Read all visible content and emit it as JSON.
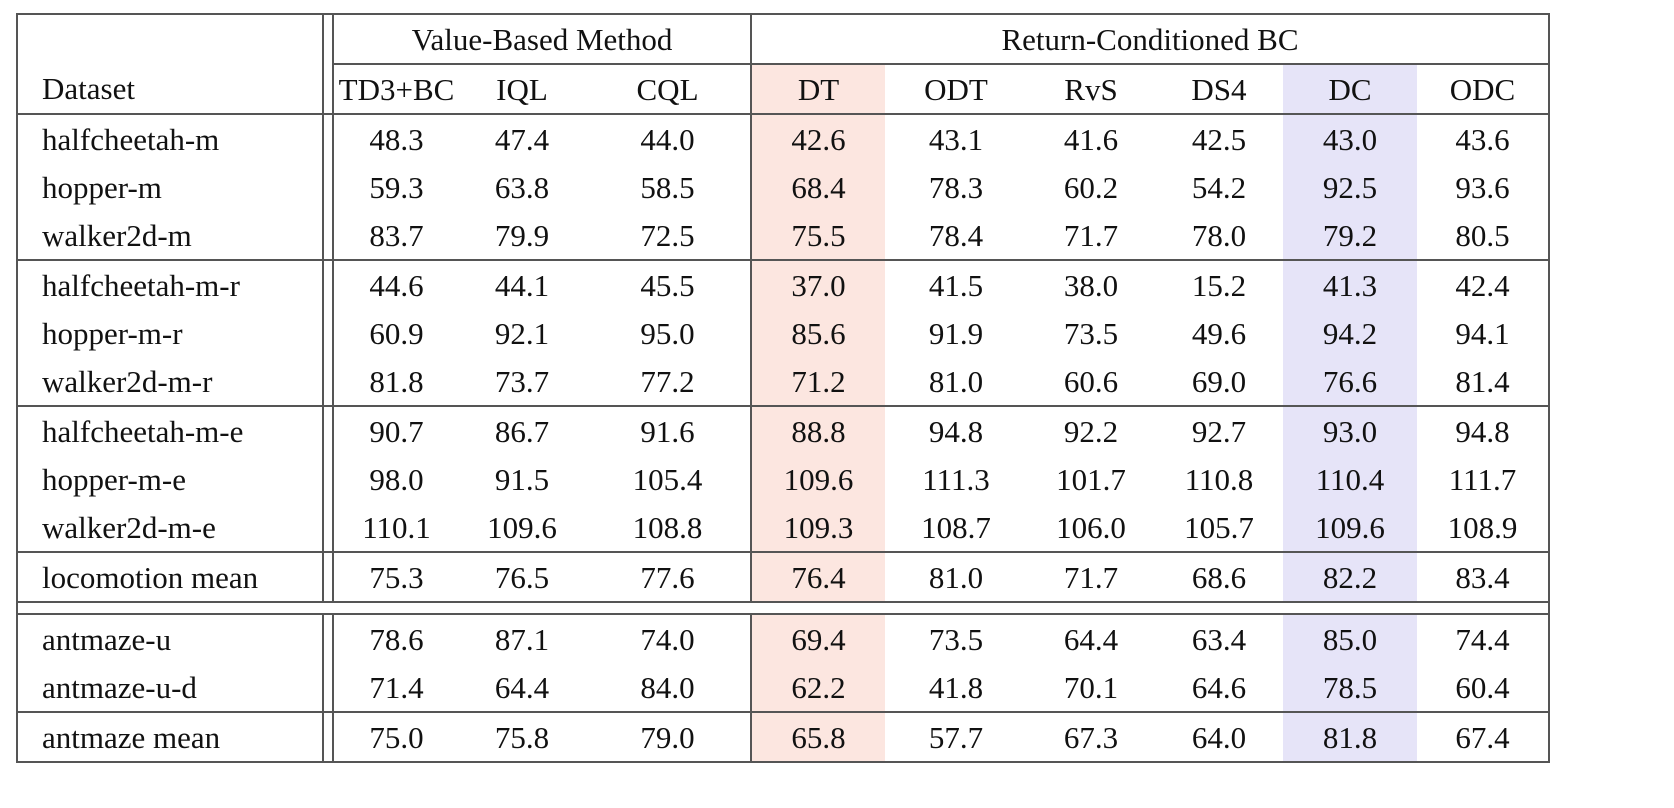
{
  "table": {
    "groups": [
      {
        "label": "Value-Based Method"
      },
      {
        "label": "Return-Conditioned BC"
      }
    ],
    "columns": [
      "Dataset",
      "TD3+BC",
      "IQL",
      "CQL",
      "DT",
      "ODT",
      "RvS",
      "DS4",
      "DC",
      "ODC"
    ],
    "bold_columns": [
      8,
      9
    ],
    "highlight_colors": {
      "DT": "#fce6e0",
      "DC": "#e6e4f8"
    },
    "blocks": [
      {
        "rows": [
          {
            "name": "halfcheetah-m",
            "values": [
              "48.3",
              "47.4",
              "44.0",
              "42.6",
              "43.1",
              "41.6",
              "42.5",
              "43.0",
              "43.6"
            ],
            "bold": [
              0,
              1
            ]
          },
          {
            "name": "hopper-m",
            "values": [
              "59.3",
              "63.8",
              "58.5",
              "68.4",
              "78.3",
              "60.2",
              "54.2",
              "92.5",
              "93.6"
            ],
            "bold": [
              7,
              8
            ]
          },
          {
            "name": "walker2d-m",
            "values": [
              "83.7",
              "79.9",
              "72.5",
              "75.5",
              "78.4",
              "71.7",
              "78.0",
              "79.2",
              "80.5"
            ],
            "bold": [
              0
            ]
          }
        ]
      },
      {
        "rows": [
          {
            "name": "halfcheetah-m-r",
            "values": [
              "44.6",
              "44.1",
              "45.5",
              "37.0",
              "41.5",
              "38.0",
              "15.2",
              "41.3",
              "42.4"
            ],
            "bold": [
              0,
              2
            ]
          },
          {
            "name": "hopper-m-r",
            "values": [
              "60.9",
              "92.1",
              "95.0",
              "85.6",
              "91.9",
              "73.5",
              "49.6",
              "94.2",
              "94.1"
            ],
            "bold": [
              2,
              7,
              8
            ]
          },
          {
            "name": "walker2d-m-r",
            "values": [
              "81.8",
              "73.7",
              "77.2",
              "71.2",
              "81.0",
              "60.6",
              "69.0",
              "76.6",
              "81.4"
            ],
            "bold": [
              0,
              4,
              8
            ]
          }
        ]
      },
      {
        "rows": [
          {
            "name": "halfcheetah-m-e",
            "values": [
              "90.7",
              "86.7",
              "91.6",
              "88.8",
              "94.8",
              "92.2",
              "92.7",
              "93.0",
              "94.8"
            ],
            "bold": [
              4,
              5,
              6,
              7,
              8
            ]
          },
          {
            "name": "hopper-m-e",
            "values": [
              "98.0",
              "91.5",
              "105.4",
              "109.6",
              "111.3",
              "101.7",
              "110.8",
              "110.4",
              "111.7"
            ],
            "bold": [
              3,
              4,
              6,
              7,
              8
            ]
          },
          {
            "name": "walker2d-m-e",
            "values": [
              "110.1",
              "109.6",
              "108.8",
              "109.3",
              "108.7",
              "106.0",
              "105.7",
              "109.6",
              "108.9"
            ],
            "bold": [
              0,
              1,
              2,
              3,
              4,
              7,
              8
            ]
          }
        ]
      },
      {
        "rows": [
          {
            "name": "locomotion mean",
            "values": [
              "75.3",
              "76.5",
              "77.6",
              "76.4",
              "81.0",
              "71.7",
              "68.6",
              "82.2",
              "83.4"
            ],
            "bold": [
              4,
              7,
              8
            ]
          }
        ]
      },
      {
        "gap_before": true,
        "rows": [
          {
            "name": "antmaze-u",
            "values": [
              "78.6",
              "87.1",
              "74.0",
              "69.4",
              "73.5",
              "64.4",
              "63.4",
              "85.0",
              "74.4"
            ],
            "bold": [
              1,
              7
            ]
          },
          {
            "name": "antmaze-u-d",
            "values": [
              "71.4",
              "64.4",
              "84.0",
              "62.2",
              "41.8",
              "70.1",
              "64.6",
              "78.5",
              "60.4"
            ],
            "bold": [
              2
            ]
          }
        ]
      },
      {
        "rows": [
          {
            "name": "antmaze mean",
            "values": [
              "75.0",
              "75.8",
              "79.0",
              "65.8",
              "57.7",
              "67.3",
              "64.0",
              "81.8",
              "67.4"
            ],
            "bold": [
              7
            ]
          }
        ]
      }
    ]
  }
}
